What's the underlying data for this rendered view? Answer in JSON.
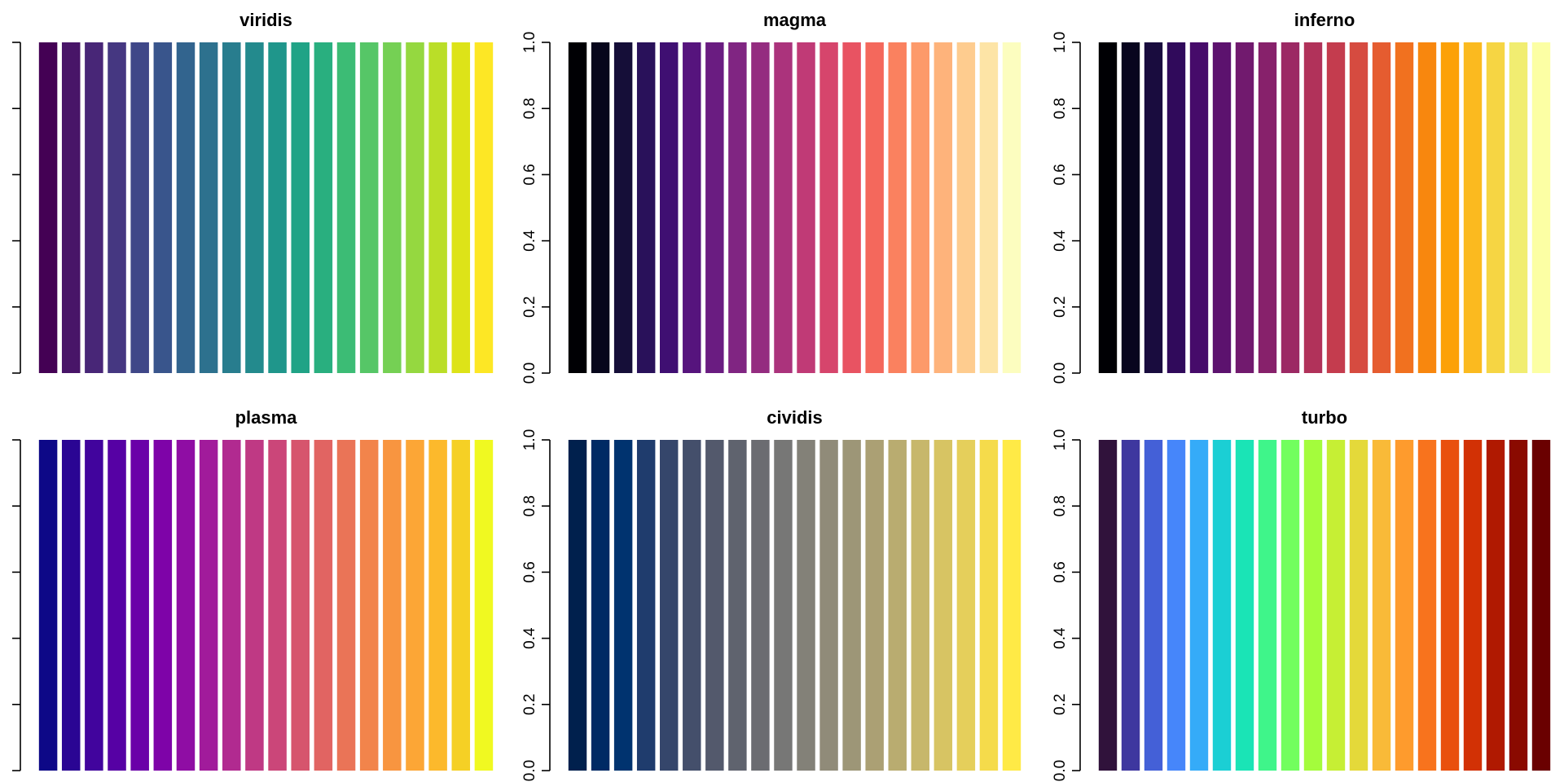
{
  "chart_data": [
    {
      "type": "bar",
      "title": "viridis",
      "values": [
        1,
        1,
        1,
        1,
        1,
        1,
        1,
        1,
        1,
        1,
        1,
        1,
        1,
        1,
        1,
        1,
        1,
        1,
        1,
        1
      ],
      "colors": [
        "#440154",
        "#481568",
        "#482677",
        "#453781",
        "#3F4788",
        "#39558C",
        "#32648E",
        "#2D718E",
        "#287D8E",
        "#238A8D",
        "#1F968B",
        "#20A386",
        "#29AF7F",
        "#3CBC75",
        "#56C667",
        "#75D054",
        "#95D840",
        "#BADE28",
        "#DDE318",
        "#FDE725"
      ],
      "ylim": [
        0,
        1
      ],
      "yticks": [
        0,
        0.2,
        0.4,
        0.6,
        0.8,
        1
      ],
      "ytick_labels": false
    },
    {
      "type": "bar",
      "title": "magma",
      "values": [
        1,
        1,
        1,
        1,
        1,
        1,
        1,
        1,
        1,
        1,
        1,
        1,
        1,
        1,
        1,
        1,
        1,
        1,
        1,
        1
      ],
      "colors": [
        "#000004",
        "#07061C",
        "#150E38",
        "#29115A",
        "#3F0F72",
        "#56147D",
        "#6A1C81",
        "#802582",
        "#942C80",
        "#AB337C",
        "#C03A76",
        "#D6456C",
        "#E85362",
        "#F4685C",
        "#FA815F",
        "#FD9A6A",
        "#FEB37B",
        "#FECC8F",
        "#FDE4A6",
        "#FCFDBF"
      ],
      "ylim": [
        0,
        1
      ],
      "yticks": [
        {
          "value": 0,
          "label": "0.0"
        },
        0.2,
        0.4,
        0.6,
        0.8,
        {
          "value": 1,
          "label": "1.0"
        }
      ],
      "ytick_labels": true
    },
    {
      "type": "bar",
      "title": "inferno",
      "values": [
        1,
        1,
        1,
        1,
        1,
        1,
        1,
        1,
        1,
        1,
        1,
        1,
        1,
        1,
        1,
        1,
        1,
        1,
        1,
        1
      ],
      "colors": [
        "#000004",
        "#08051E",
        "#190C3E",
        "#300A5B",
        "#460B6A",
        "#5C126E",
        "#711A6E",
        "#87216B",
        "#9C2964",
        "#B1325A",
        "#C43C4E",
        "#D64B40",
        "#E55C30",
        "#F1711F",
        "#F8870E",
        "#FCA108",
        "#FBBA1F",
        "#F6D543",
        "#F1ED71",
        "#FCFFA4"
      ],
      "ylim": [
        0,
        1
      ],
      "yticks": [
        {
          "value": 0,
          "label": "0.0"
        },
        0.2,
        0.4,
        0.6,
        0.8,
        {
          "value": 1,
          "label": "1.0"
        }
      ],
      "ytick_labels": true
    },
    {
      "type": "bar",
      "title": "plasma",
      "values": [
        1,
        1,
        1,
        1,
        1,
        1,
        1,
        1,
        1,
        1,
        1,
        1,
        1,
        1,
        1,
        1,
        1,
        1,
        1,
        1
      ],
      "colors": [
        "#0D0887",
        "#2A0593",
        "#41049D",
        "#5601A4",
        "#6A00A8",
        "#7E03A8",
        "#8F0DA4",
        "#A11B9B",
        "#B12A90",
        "#BF3984",
        "#CB4679",
        "#D6556D",
        "#E16462",
        "#EA7457",
        "#F2844B",
        "#F89540",
        "#FCA636",
        "#FCB92C",
        "#F5D025",
        "#F0F921"
      ],
      "ylim": [
        0,
        1
      ],
      "yticks": [
        0,
        0.2,
        0.4,
        0.6,
        0.8,
        1
      ],
      "ytick_labels": false
    },
    {
      "type": "bar",
      "title": "cividis",
      "values": [
        1,
        1,
        1,
        1,
        1,
        1,
        1,
        1,
        1,
        1,
        1,
        1,
        1,
        1,
        1,
        1,
        1,
        1,
        1,
        1
      ],
      "colors": [
        "#00204D",
        "#002A64",
        "#00336F",
        "#1F3C6D",
        "#35466B",
        "#444F6B",
        "#53596C",
        "#5F636E",
        "#6B6C71",
        "#777776",
        "#838178",
        "#908B79",
        "#9D9677",
        "#ABA074",
        "#B9AC70",
        "#C7B76B",
        "#D7C463",
        "#E5CF5B",
        "#F5DB4B",
        "#FFEA46"
      ],
      "ylim": [
        0,
        1
      ],
      "yticks": [
        {
          "value": 0,
          "label": "0.0"
        },
        0.2,
        0.4,
        0.6,
        0.8,
        {
          "value": 1,
          "label": "1.0"
        }
      ],
      "ytick_labels": true
    },
    {
      "type": "bar",
      "title": "turbo",
      "values": [
        1,
        1,
        1,
        1,
        1,
        1,
        1,
        1,
        1,
        1,
        1,
        1,
        1,
        1,
        1,
        1,
        1,
        1,
        1,
        1
      ],
      "colors": [
        "#30123B",
        "#3E379F",
        "#4460D7",
        "#4686FA",
        "#35ABF8",
        "#1BCFD4",
        "#1AE4B6",
        "#3FF58A",
        "#72FE5E",
        "#A4FC3C",
        "#C6EF34",
        "#E4D93A",
        "#F9BA38",
        "#FE9B2D",
        "#F8731D",
        "#E9500E",
        "#D23105",
        "#B01901",
        "#8A0A00",
        "#6A0000"
      ],
      "ylim": [
        0,
        1
      ],
      "yticks": [
        {
          "value": 0,
          "label": "0.0"
        },
        0.2,
        0.4,
        0.6,
        0.8,
        {
          "value": 1,
          "label": "1.0"
        }
      ],
      "ytick_labels": true
    }
  ]
}
